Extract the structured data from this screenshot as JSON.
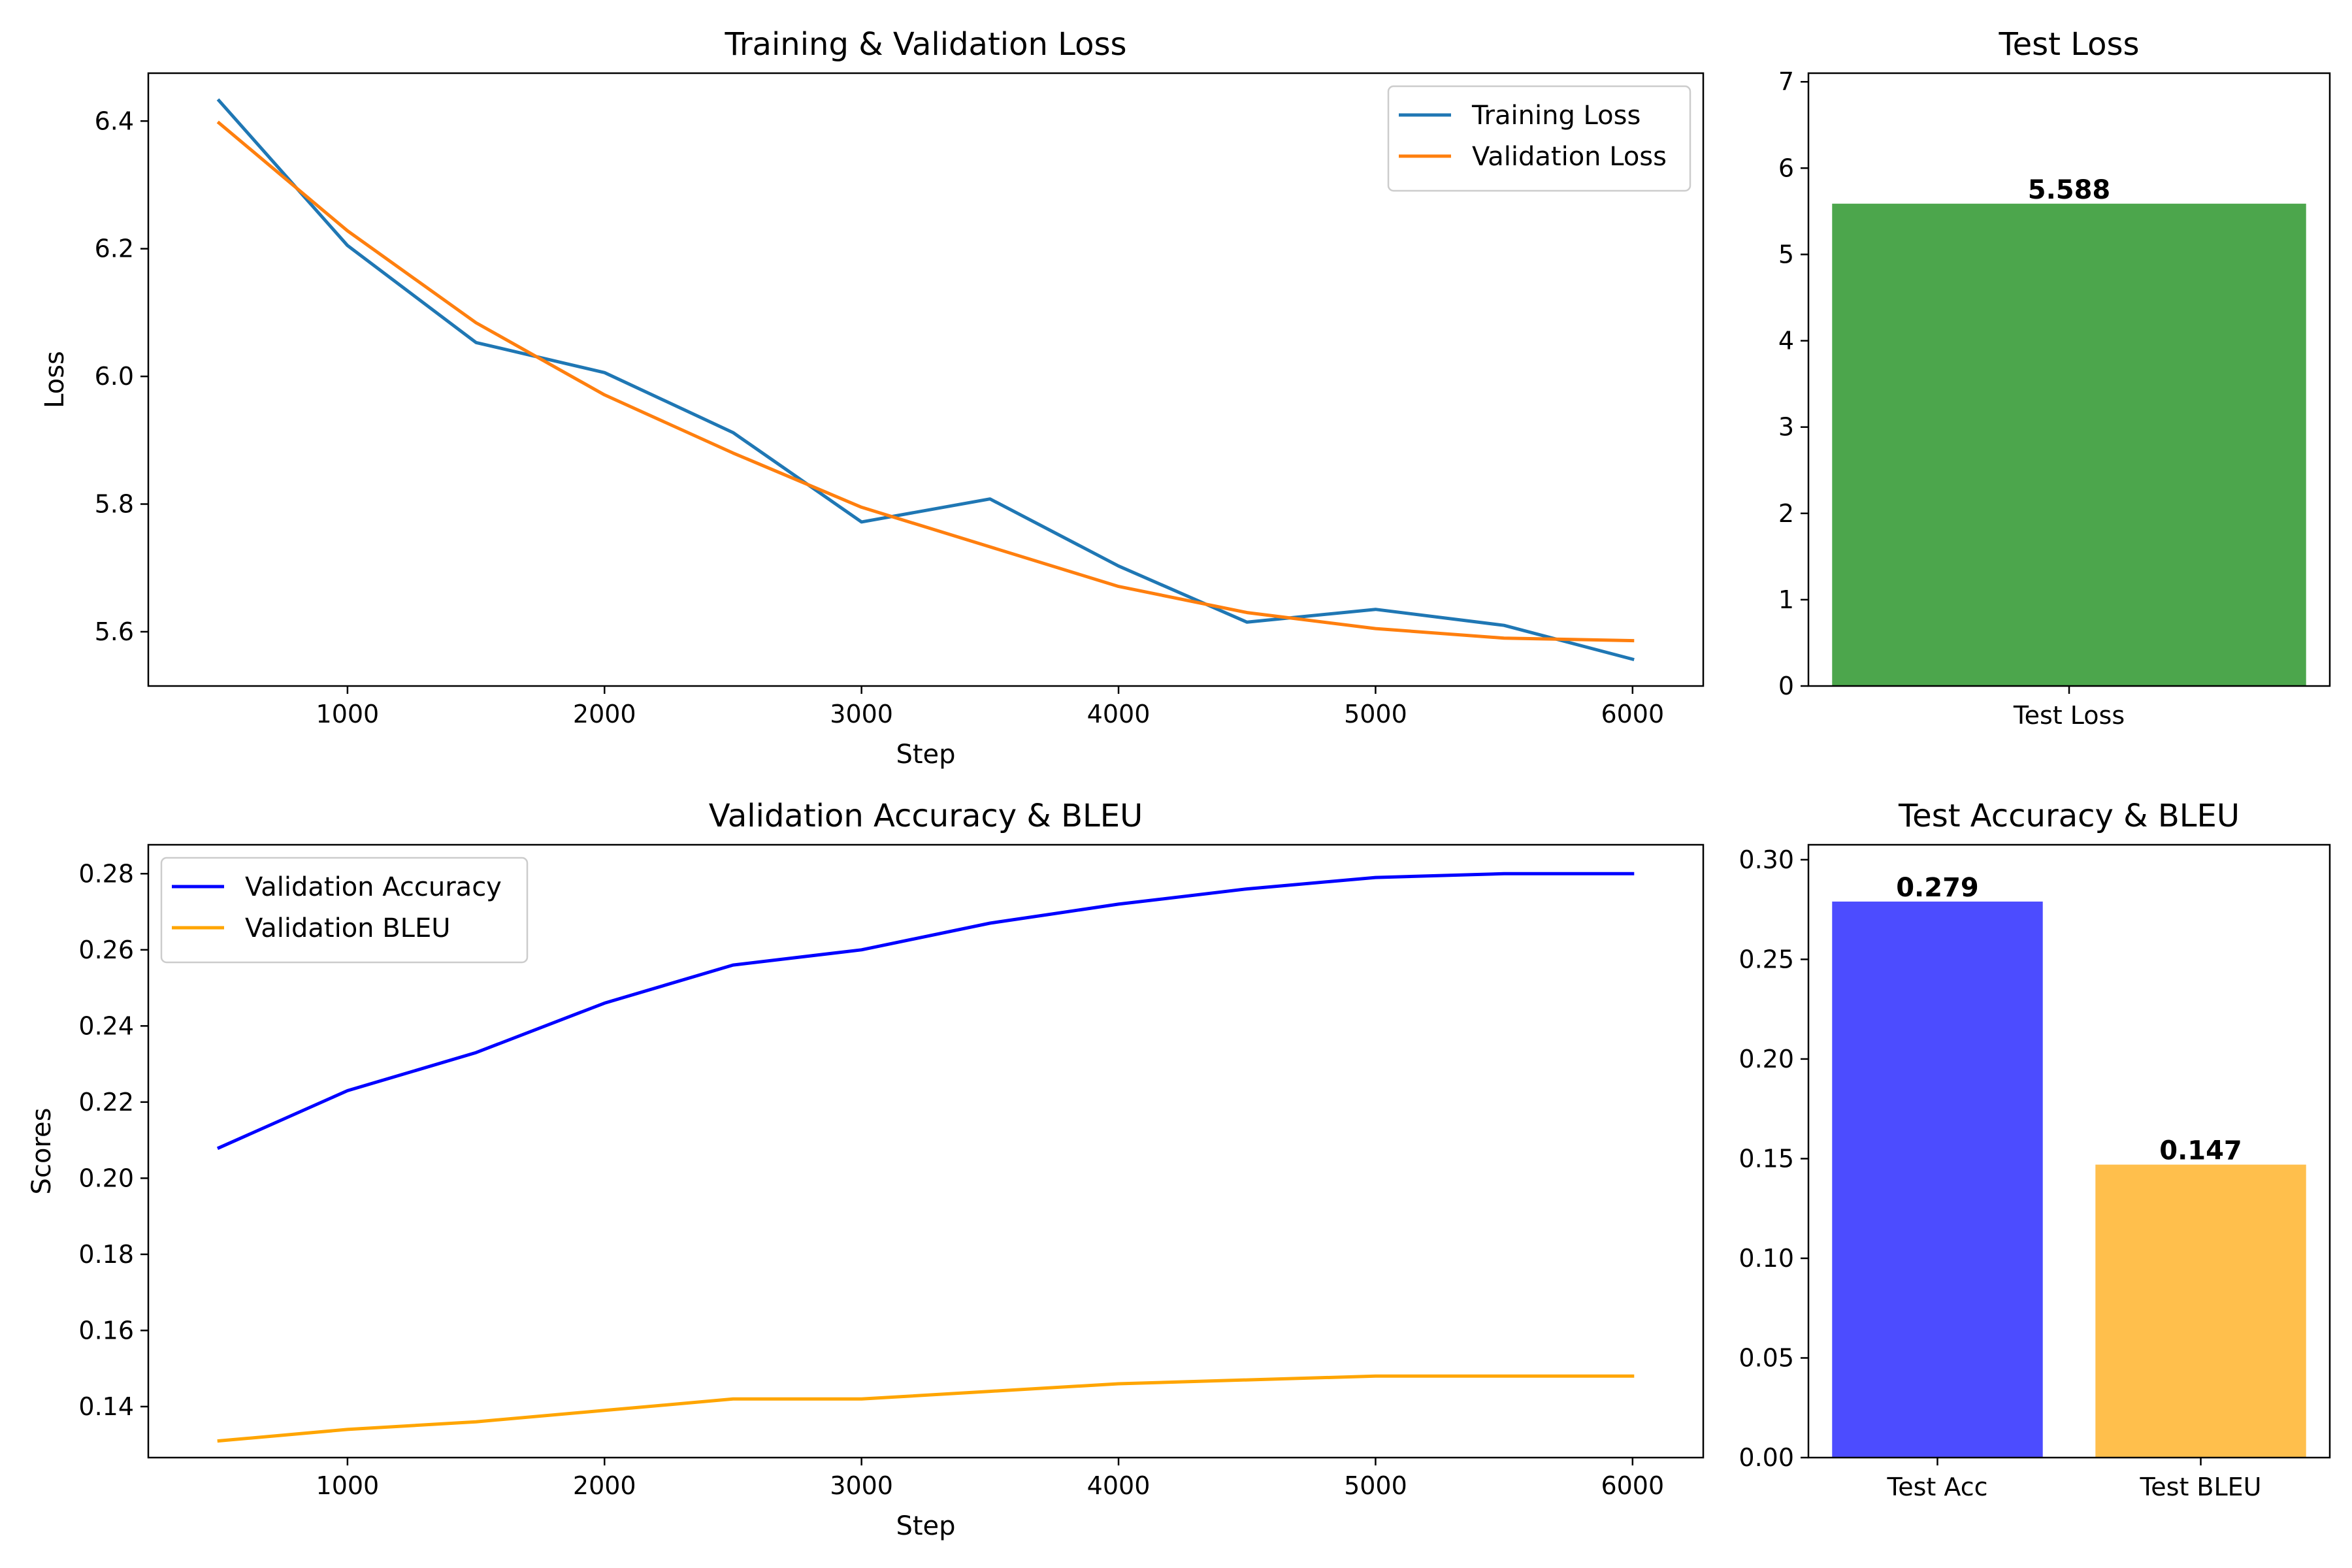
{
  "chart_data": [
    {
      "type": "line",
      "title": "Training & Validation Loss",
      "xlabel": "Step",
      "ylabel": "Loss",
      "xlim": [
        225,
        6275
      ],
      "ylim": [
        5.515,
        6.475
      ],
      "xticks": [
        1000,
        2000,
        3000,
        4000,
        5000,
        6000
      ],
      "yticks": [
        5.6,
        5.8,
        6.0,
        6.2,
        6.4
      ],
      "ytick_labels": [
        "5.6",
        "5.8",
        "6.0",
        "6.2",
        "6.4"
      ],
      "legend": "top-right",
      "x": [
        500,
        1000,
        1500,
        2000,
        2500,
        3000,
        3500,
        4000,
        4500,
        5000,
        5500,
        6000
      ],
      "series": [
        {
          "name": "Training Loss",
          "color": "#1f77b4",
          "values": [
            6.432,
            6.205,
            6.053,
            6.006,
            5.912,
            5.772,
            5.808,
            5.703,
            5.615,
            5.635,
            5.61,
            5.557
          ]
        },
        {
          "name": "Validation Loss",
          "color": "#ff7f0e",
          "values": [
            6.397,
            6.228,
            6.084,
            5.971,
            5.88,
            5.795,
            5.733,
            5.671,
            5.63,
            5.605,
            5.59,
            5.586
          ]
        }
      ]
    },
    {
      "type": "bar",
      "title": "Test Loss",
      "categories": [
        "Test Loss"
      ],
      "values": [
        5.588
      ],
      "value_labels": [
        "5.588"
      ],
      "colors": [
        "#4ca64c"
      ],
      "ylim": [
        0,
        7.1
      ],
      "yticks": [
        0,
        1,
        2,
        3,
        4,
        5,
        6,
        7
      ],
      "ytick_labels": [
        "0",
        "1",
        "2",
        "3",
        "4",
        "5",
        "6",
        "7"
      ]
    },
    {
      "type": "line",
      "title": "Validation Accuracy & BLEU",
      "xlabel": "Step",
      "ylabel": "Scores",
      "xlim": [
        225,
        6275
      ],
      "ylim": [
        0.1266,
        0.2876
      ],
      "xticks": [
        1000,
        2000,
        3000,
        4000,
        5000,
        6000
      ],
      "yticks": [
        0.14,
        0.16,
        0.18,
        0.2,
        0.22,
        0.24,
        0.26,
        0.28
      ],
      "ytick_labels": [
        "0.14",
        "0.16",
        "0.18",
        "0.20",
        "0.22",
        "0.24",
        "0.26",
        "0.28"
      ],
      "legend": "top-left",
      "x": [
        500,
        1000,
        1500,
        2000,
        2500,
        3000,
        3500,
        4000,
        4500,
        5000,
        5500,
        6000
      ],
      "series": [
        {
          "name": "Validation Accuracy",
          "color": "#0000ff",
          "values": [
            0.208,
            0.223,
            0.233,
            0.246,
            0.256,
            0.26,
            0.267,
            0.272,
            0.276,
            0.279,
            0.28,
            0.28
          ]
        },
        {
          "name": "Validation BLEU",
          "color": "#ffa500",
          "values": [
            0.131,
            0.134,
            0.136,
            0.139,
            0.142,
            0.142,
            0.144,
            0.146,
            0.147,
            0.148,
            0.148,
            0.148
          ]
        }
      ]
    },
    {
      "type": "bar",
      "title": "Test Accuracy & BLEU",
      "categories": [
        "Test Acc",
        "Test BLEU"
      ],
      "values": [
        0.279,
        0.147
      ],
      "value_labels": [
        "0.279",
        "0.147"
      ],
      "colors": [
        "#4c4cff",
        "#ffbf4c"
      ],
      "ylim": [
        0,
        0.3075
      ],
      "yticks": [
        0,
        0.05,
        0.1,
        0.15,
        0.2,
        0.25,
        0.3
      ],
      "ytick_labels": [
        "0.00",
        "0.05",
        "0.10",
        "0.15",
        "0.20",
        "0.25",
        "0.30"
      ]
    }
  ]
}
